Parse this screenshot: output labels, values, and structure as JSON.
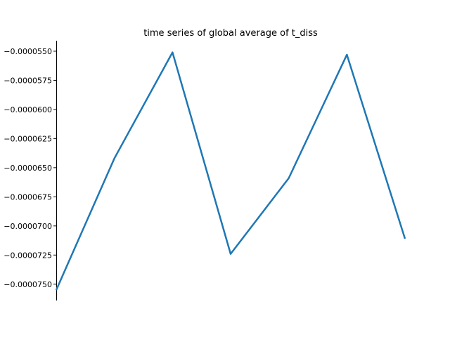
{
  "chart_data": {
    "type": "line",
    "title": "time series of global average of t_diss",
    "xlabel": "",
    "ylabel": "",
    "x": [
      0,
      1,
      2,
      3,
      4,
      5,
      6
    ],
    "series": [
      {
        "values": [
          -7.55e-05,
          -6.42e-05,
          -5.51e-05,
          -7.24e-05,
          -6.59e-05,
          -5.53e-05,
          -7.11e-05
        ]
      }
    ],
    "xlim": [
      0,
      6
    ],
    "ylim": [
      -7.64e-05,
      -5.41e-05
    ],
    "yticks": [
      -5.5e-05,
      -5.75e-05,
      -6e-05,
      -6.25e-05,
      -6.5e-05,
      -6.75e-05,
      -7e-05,
      -7.25e-05,
      -7.5e-05
    ],
    "ytick_labels": [
      "−0.0000550",
      "−0.0000575",
      "−0.0000600",
      "−0.0000625",
      "−0.0000650",
      "−0.0000675",
      "−0.0000700",
      "−0.0000725",
      "−0.0000750"
    ],
    "xticks_visible": false,
    "grid": false,
    "legend": "none",
    "line_color": "#1f77b4",
    "axis_color": "#000000"
  }
}
